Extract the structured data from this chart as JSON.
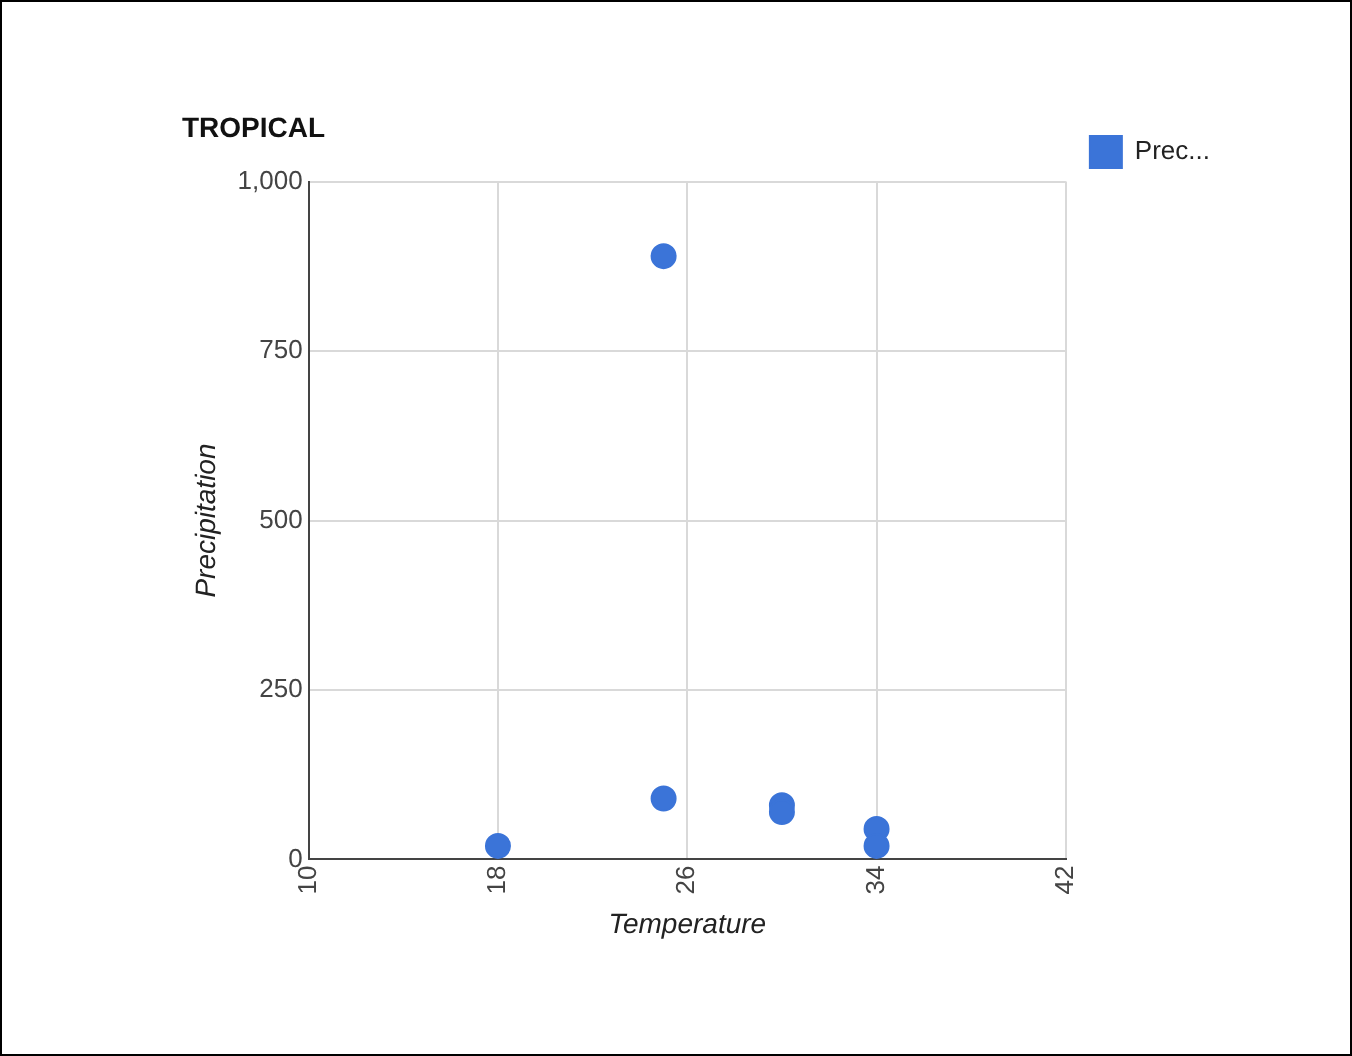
{
  "chart_data": {
    "type": "scatter",
    "title": "TROPICAL",
    "xlabel": "Temperature",
    "ylabel": "Precipitation",
    "series": [
      {
        "name": "Prec...",
        "color": "#3b74d8",
        "x": [
          18,
          25,
          25,
          30,
          30,
          34,
          34
        ],
        "values": [
          20,
          890,
          90,
          80,
          70,
          45,
          20
        ]
      }
    ],
    "xlim": [
      10,
      42
    ],
    "xticks": [
      10,
      18,
      26,
      34,
      42
    ],
    "ylim": [
      0,
      1000
    ],
    "yticks": [
      0,
      {
        "value": 250,
        "label": "250"
      },
      {
        "value": 500,
        "label": "500"
      },
      {
        "value": 750,
        "label": "750"
      },
      {
        "value": 1000,
        "label": "1,000"
      }
    ],
    "grid": true,
    "legend": "top right",
    "marker": "circle"
  }
}
